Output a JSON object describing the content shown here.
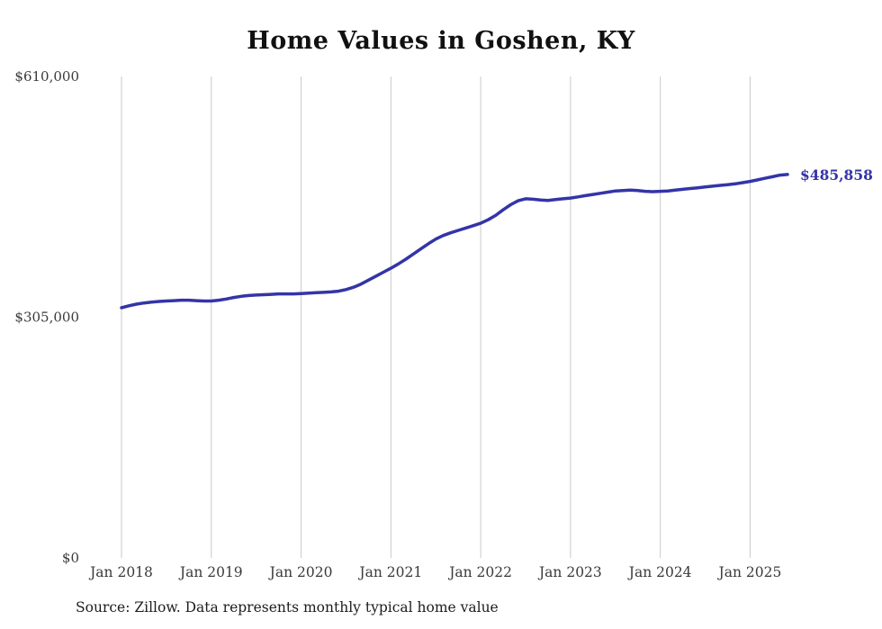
{
  "chart_data": {
    "type": "line",
    "title": "Home Values in Goshen, KY",
    "source": "Source: Zillow. Data represents monthly typical home value",
    "grid": "vertical",
    "legend": "none",
    "ylim": [
      0,
      610000
    ],
    "y_ticks": [
      {
        "value": 0,
        "label": "$0"
      },
      {
        "value": 305000,
        "label": "$305,000"
      },
      {
        "value": 610000,
        "label": "$610,000"
      }
    ],
    "x_tick_labels": [
      "Jan 2018",
      "Jan 2019",
      "Jan 2020",
      "Jan 2021",
      "Jan 2022",
      "Jan 2023",
      "Jan 2024",
      "Jan 2025"
    ],
    "x_tick_indices": [
      0,
      12,
      24,
      36,
      48,
      60,
      72,
      84
    ],
    "end_annotation": "$485,858",
    "colors": {
      "line": "#3434a8",
      "annotation": "#3434a8",
      "gridline": "#c9c9c9",
      "axis_text": "#3a3a3a"
    },
    "series": [
      {
        "name": "Monthly typical home value",
        "x": [
          "2018-01",
          "2018-02",
          "2018-03",
          "2018-04",
          "2018-05",
          "2018-06",
          "2018-07",
          "2018-08",
          "2018-09",
          "2018-10",
          "2018-11",
          "2018-12",
          "2019-01",
          "2019-02",
          "2019-03",
          "2019-04",
          "2019-05",
          "2019-06",
          "2019-07",
          "2019-08",
          "2019-09",
          "2019-10",
          "2019-11",
          "2019-12",
          "2020-01",
          "2020-02",
          "2020-03",
          "2020-04",
          "2020-05",
          "2020-06",
          "2020-07",
          "2020-08",
          "2020-09",
          "2020-10",
          "2020-11",
          "2020-12",
          "2021-01",
          "2021-02",
          "2021-03",
          "2021-04",
          "2021-05",
          "2021-06",
          "2021-07",
          "2021-08",
          "2021-09",
          "2021-10",
          "2021-11",
          "2021-12",
          "2022-01",
          "2022-02",
          "2022-03",
          "2022-04",
          "2022-05",
          "2022-06",
          "2022-07",
          "2022-08",
          "2022-09",
          "2022-10",
          "2022-11",
          "2022-12",
          "2023-01",
          "2023-02",
          "2023-03",
          "2023-04",
          "2023-05",
          "2023-06",
          "2023-07",
          "2023-08",
          "2023-09",
          "2023-10",
          "2023-11",
          "2023-12",
          "2024-01",
          "2024-02",
          "2024-03",
          "2024-04",
          "2024-05",
          "2024-06",
          "2024-07",
          "2024-08",
          "2024-09",
          "2024-10",
          "2024-11",
          "2024-12",
          "2025-01",
          "2025-02",
          "2025-03",
          "2025-04",
          "2025-05",
          "2025-06"
        ],
        "values": [
          317000,
          319500,
          321500,
          323000,
          324000,
          325000,
          325500,
          326000,
          326500,
          326500,
          326000,
          325500,
          325500,
          326500,
          328000,
          330000,
          331500,
          332500,
          333000,
          333500,
          334000,
          334500,
          334500,
          334500,
          335000,
          335500,
          336000,
          336500,
          337000,
          338000,
          340000,
          343000,
          347000,
          352000,
          357000,
          362000,
          367000,
          372500,
          378500,
          385000,
          391500,
          398000,
          404000,
          408500,
          412000,
          415000,
          418000,
          421000,
          424000,
          428500,
          434000,
          441000,
          447500,
          452500,
          455000,
          454500,
          453500,
          453000,
          454000,
          455000,
          456000,
          457500,
          459000,
          460500,
          462000,
          463500,
          465000,
          465500,
          466000,
          465500,
          464500,
          464000,
          464500,
          465000,
          466000,
          467000,
          468000,
          469000,
          470000,
          471000,
          472000,
          473000,
          474000,
          475500,
          477000,
          479000,
          481000,
          483000,
          485000,
          485858
        ]
      }
    ],
    "layout": {
      "plot_left": 135,
      "plot_right": 875,
      "plot_top": 85,
      "plot_bottom": 620,
      "y_label_right_edge": 88,
      "x_label_baseline": 641
    }
  }
}
